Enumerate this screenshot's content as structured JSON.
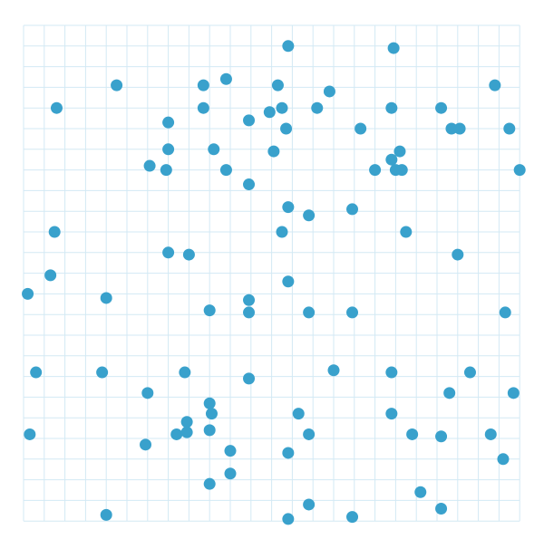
{
  "game": {
    "type": "dot-grid-board",
    "grid": {
      "columns": 24,
      "rows": 24
    },
    "colors": {
      "grid_line": "#d3e9f4",
      "dot": "#39a1cc",
      "background": "#ffffff"
    },
    "dots": [
      [
        12.8,
        1
      ],
      [
        17.9,
        1.1
      ],
      [
        4.5,
        2.9
      ],
      [
        8.7,
        2.9
      ],
      [
        9.8,
        2.6
      ],
      [
        12.3,
        2.9
      ],
      [
        14.8,
        3.2
      ],
      [
        22.8,
        2.9
      ],
      [
        1.6,
        4
      ],
      [
        8.7,
        4
      ],
      [
        11.9,
        4.2
      ],
      [
        12.5,
        4
      ],
      [
        14.2,
        4
      ],
      [
        17.8,
        4
      ],
      [
        20.2,
        4
      ],
      [
        7,
        4.7
      ],
      [
        10.9,
        4.6
      ],
      [
        12.7,
        5
      ],
      [
        16.3,
        5
      ],
      [
        20.7,
        5
      ],
      [
        21.1,
        5
      ],
      [
        23.5,
        5
      ],
      [
        7,
        6
      ],
      [
        9.2,
        6
      ],
      [
        12.1,
        6.1
      ],
      [
        18.2,
        6.1
      ],
      [
        17.8,
        6.5
      ],
      [
        6.1,
        6.8
      ],
      [
        6.9,
        7
      ],
      [
        9.8,
        7
      ],
      [
        17,
        7
      ],
      [
        18,
        7
      ],
      [
        18.3,
        7
      ],
      [
        24,
        7
      ],
      [
        10.9,
        7.7
      ],
      [
        12.8,
        8.8
      ],
      [
        13.8,
        9.2
      ],
      [
        15.9,
        8.9
      ],
      [
        1.5,
        10
      ],
      [
        12.5,
        10
      ],
      [
        18.5,
        10
      ],
      [
        7,
        11
      ],
      [
        8,
        11.1
      ],
      [
        21,
        11.1
      ],
      [
        1.3,
        12.1
      ],
      [
        12.8,
        12.4
      ],
      [
        0.2,
        13
      ],
      [
        4,
        13.2
      ],
      [
        10.9,
        13.3
      ],
      [
        9,
        13.8
      ],
      [
        10.9,
        13.9
      ],
      [
        13.8,
        13.9
      ],
      [
        15.9,
        13.9
      ],
      [
        23.3,
        13.9
      ],
      [
        0.6,
        16.8
      ],
      [
        3.8,
        16.8
      ],
      [
        7.8,
        16.8
      ],
      [
        15,
        16.7
      ],
      [
        17.8,
        16.8
      ],
      [
        21.6,
        16.8
      ],
      [
        10.9,
        17.1
      ],
      [
        6,
        17.8
      ],
      [
        20.6,
        17.8
      ],
      [
        23.7,
        17.8
      ],
      [
        9,
        18.3
      ],
      [
        9.1,
        18.8
      ],
      [
        13.3,
        18.8
      ],
      [
        17.8,
        18.8
      ],
      [
        7.9,
        19.2
      ],
      [
        0.3,
        19.8
      ],
      [
        7.4,
        19.8
      ],
      [
        7.9,
        19.7
      ],
      [
        9,
        19.6
      ],
      [
        13.8,
        19.8
      ],
      [
        18.8,
        19.8
      ],
      [
        20.2,
        19.9
      ],
      [
        22.6,
        19.8
      ],
      [
        5.9,
        20.3
      ],
      [
        10,
        20.6
      ],
      [
        12.8,
        20.7
      ],
      [
        23.2,
        21
      ],
      [
        10,
        21.7
      ],
      [
        9,
        22.2
      ],
      [
        19.2,
        22.6
      ],
      [
        13.8,
        23.2
      ],
      [
        20.2,
        23.4
      ],
      [
        4,
        23.7
      ],
      [
        12.8,
        23.9
      ],
      [
        15.9,
        23.8
      ]
    ]
  }
}
